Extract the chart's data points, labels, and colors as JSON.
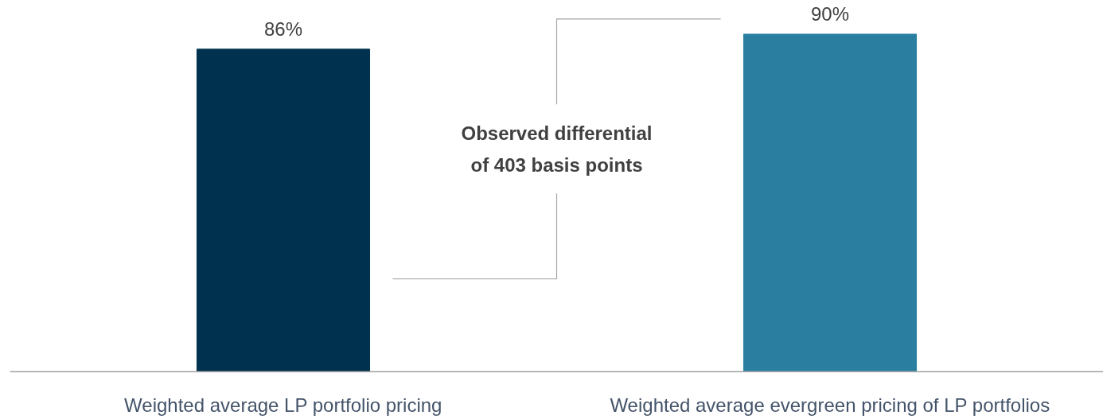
{
  "chart_data": {
    "type": "bar",
    "categories": [
      "Weighted average LP portfolio pricing",
      "Weighted average evergreen pricing of LP portfolios"
    ],
    "values": [
      86,
      90
    ],
    "colors": [
      "#00324f",
      "#2a7fa1"
    ],
    "value_labels": [
      "86%",
      "90%"
    ],
    "tick_labels": "x",
    "grid": false,
    "annotations": [
      "Observed differential\nof 403 basis points"
    ]
  }
}
